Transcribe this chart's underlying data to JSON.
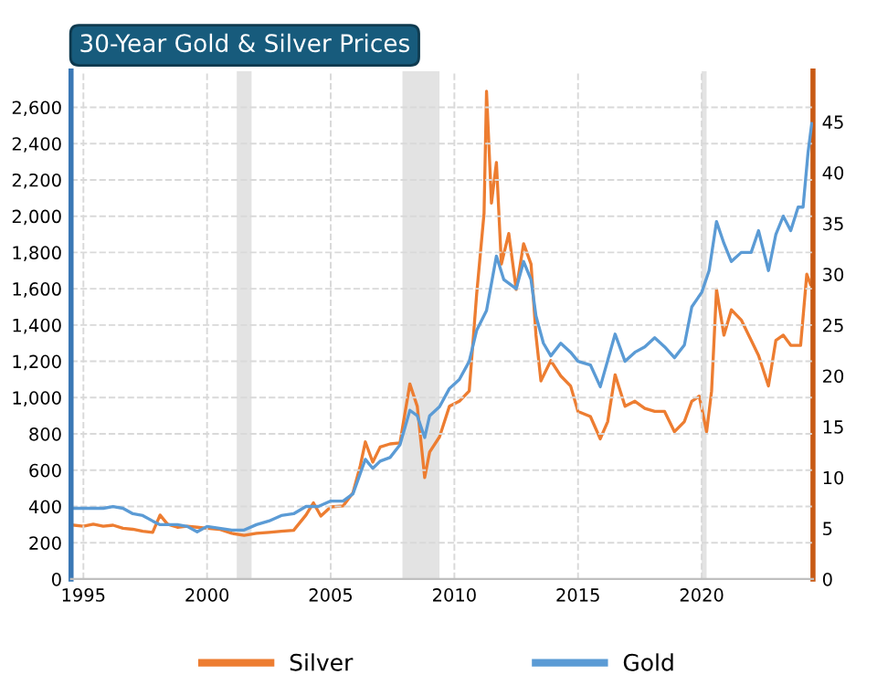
{
  "chart_data": {
    "type": "line",
    "title": "30-Year Gold & Silver Prices",
    "xlim": [
      1994.5,
      2024.5
    ],
    "xticks": [
      1995,
      2000,
      2005,
      2010,
      2015,
      2020
    ],
    "ylim": [
      0,
      2800
    ],
    "yticks": [
      0,
      {
        "value": 200,
        "label": "200"
      },
      {
        "value": 400,
        "label": "400"
      },
      {
        "value": 600,
        "label": "600"
      },
      {
        "value": 800,
        "label": "800"
      },
      {
        "value": 1000,
        "label": "1,000"
      },
      {
        "value": 1200,
        "label": "1,200"
      },
      {
        "value": 1400,
        "label": "1,400"
      },
      {
        "value": 1600,
        "label": "1,600"
      },
      {
        "value": 1800,
        "label": "1,800"
      },
      {
        "value": 2000,
        "label": "2,000"
      },
      {
        "value": 2200,
        "label": "2,200"
      },
      {
        "value": 2400,
        "label": "2,400"
      },
      {
        "value": 2600,
        "label": "2,600"
      }
    ],
    "y2lim": [
      0,
      50
    ],
    "y2ticks": [
      0,
      5,
      10,
      15,
      20,
      25,
      30,
      35,
      40,
      45
    ],
    "grid": true,
    "legend": "bottom",
    "line_style": "solid",
    "bands": [
      {
        "axis": "x",
        "from": 2001.2,
        "to": 2001.8,
        "color": "#e3e3e3"
      },
      {
        "axis": "x",
        "from": 2007.9,
        "to": 2009.4,
        "color": "#e3e3e3"
      },
      {
        "axis": "x",
        "from": 2020.0,
        "to": 2020.2,
        "color": "#e3e3e3"
      }
    ],
    "series": [
      {
        "name": "Silver",
        "color": "#ed7d31",
        "axis": "y2",
        "x": [
          1994.6,
          1995.0,
          1995.4,
          1995.8,
          1996.2,
          1996.6,
          1997.0,
          1997.4,
          1997.8,
          1998.1,
          1998.4,
          1998.8,
          1999.2,
          1999.6,
          2000.0,
          2000.5,
          2001.0,
          2001.5,
          2002.0,
          2002.5,
          2003.0,
          2003.5,
          2004.0,
          2004.3,
          2004.6,
          2005.0,
          2005.5,
          2005.9,
          2006.2,
          2006.4,
          2006.7,
          2007.0,
          2007.4,
          2007.8,
          2008.2,
          2008.5,
          2008.8,
          2009.0,
          2009.4,
          2009.8,
          2010.2,
          2010.6,
          2010.9,
          2011.2,
          2011.3,
          2011.5,
          2011.7,
          2011.9,
          2012.2,
          2012.5,
          2012.8,
          2013.1,
          2013.3,
          2013.5,
          2013.9,
          2014.3,
          2014.7,
          2015.0,
          2015.5,
          2015.9,
          2016.2,
          2016.5,
          2016.9,
          2017.3,
          2017.7,
          2018.1,
          2018.5,
          2018.9,
          2019.3,
          2019.6,
          2019.9,
          2020.2,
          2020.4,
          2020.6,
          2020.9,
          2021.2,
          2021.6,
          2022.0,
          2022.3,
          2022.7,
          2023.0,
          2023.3,
          2023.6,
          2024.0,
          2024.25,
          2024.4
        ],
        "values": [
          5.3,
          5.2,
          5.4,
          5.2,
          5.3,
          5.0,
          4.9,
          4.7,
          4.6,
          6.3,
          5.4,
          5.1,
          5.2,
          5.1,
          5.0,
          4.9,
          4.5,
          4.3,
          4.5,
          4.6,
          4.7,
          4.8,
          6.3,
          7.5,
          6.2,
          7.1,
          7.2,
          8.5,
          11.2,
          13.5,
          11.5,
          13.0,
          13.3,
          13.4,
          19.2,
          17.0,
          10.0,
          12.5,
          14.0,
          17.0,
          17.5,
          18.5,
          28.0,
          36.0,
          48.0,
          37.0,
          41.0,
          31.0,
          34.0,
          28.5,
          33.0,
          31.0,
          24.0,
          19.5,
          21.5,
          20.0,
          19.0,
          16.5,
          16.0,
          13.8,
          15.5,
          20.1,
          17.0,
          17.5,
          16.8,
          16.5,
          16.5,
          14.5,
          15.5,
          17.5,
          18.0,
          14.5,
          18.5,
          28.5,
          24.0,
          26.5,
          25.5,
          23.5,
          22.0,
          19.0,
          23.5,
          24.0,
          23.0,
          23.0,
          30.0,
          29.0
        ]
      },
      {
        "name": "Gold",
        "color": "#5b9bd5",
        "x": [
          1994.6,
          1995.0,
          1995.4,
          1995.8,
          1996.2,
          1996.6,
          1997.0,
          1997.4,
          1997.8,
          1998.1,
          1998.4,
          1998.8,
          1999.2,
          1999.6,
          2000.0,
          2000.5,
          2001.0,
          2001.5,
          2002.0,
          2002.5,
          2003.0,
          2003.5,
          2004.0,
          2004.5,
          2005.0,
          2005.5,
          2005.9,
          2006.4,
          2006.7,
          2007.0,
          2007.4,
          2007.8,
          2008.2,
          2008.5,
          2008.8,
          2009.0,
          2009.4,
          2009.8,
          2010.2,
          2010.6,
          2010.9,
          2011.3,
          2011.7,
          2012.0,
          2012.5,
          2012.8,
          2013.1,
          2013.3,
          2013.6,
          2013.9,
          2014.3,
          2014.7,
          2015.0,
          2015.5,
          2015.9,
          2016.5,
          2016.9,
          2017.3,
          2017.7,
          2018.1,
          2018.5,
          2018.9,
          2019.3,
          2019.6,
          2020.0,
          2020.3,
          2020.6,
          2020.9,
          2021.2,
          2021.6,
          2022.0,
          2022.3,
          2022.7,
          2023.0,
          2023.3,
          2023.6,
          2023.9,
          2024.1,
          2024.3,
          2024.45
        ],
        "values": [
          390,
          390,
          390,
          390,
          400,
          390,
          360,
          350,
          320,
          300,
          300,
          300,
          290,
          260,
          290,
          280,
          270,
          270,
          300,
          320,
          350,
          360,
          400,
          400,
          430,
          430,
          470,
          660,
          610,
          650,
          670,
          740,
          930,
          900,
          780,
          900,
          950,
          1050,
          1100,
          1200,
          1370,
          1480,
          1780,
          1650,
          1600,
          1750,
          1650,
          1450,
          1300,
          1230,
          1300,
          1250,
          1200,
          1180,
          1060,
          1350,
          1200,
          1250,
          1280,
          1330,
          1280,
          1220,
          1290,
          1500,
          1580,
          1700,
          1970,
          1850,
          1750,
          1800,
          1800,
          1920,
          1700,
          1900,
          2000,
          1920,
          2050,
          2050,
          2350,
          2510
        ]
      }
    ]
  }
}
